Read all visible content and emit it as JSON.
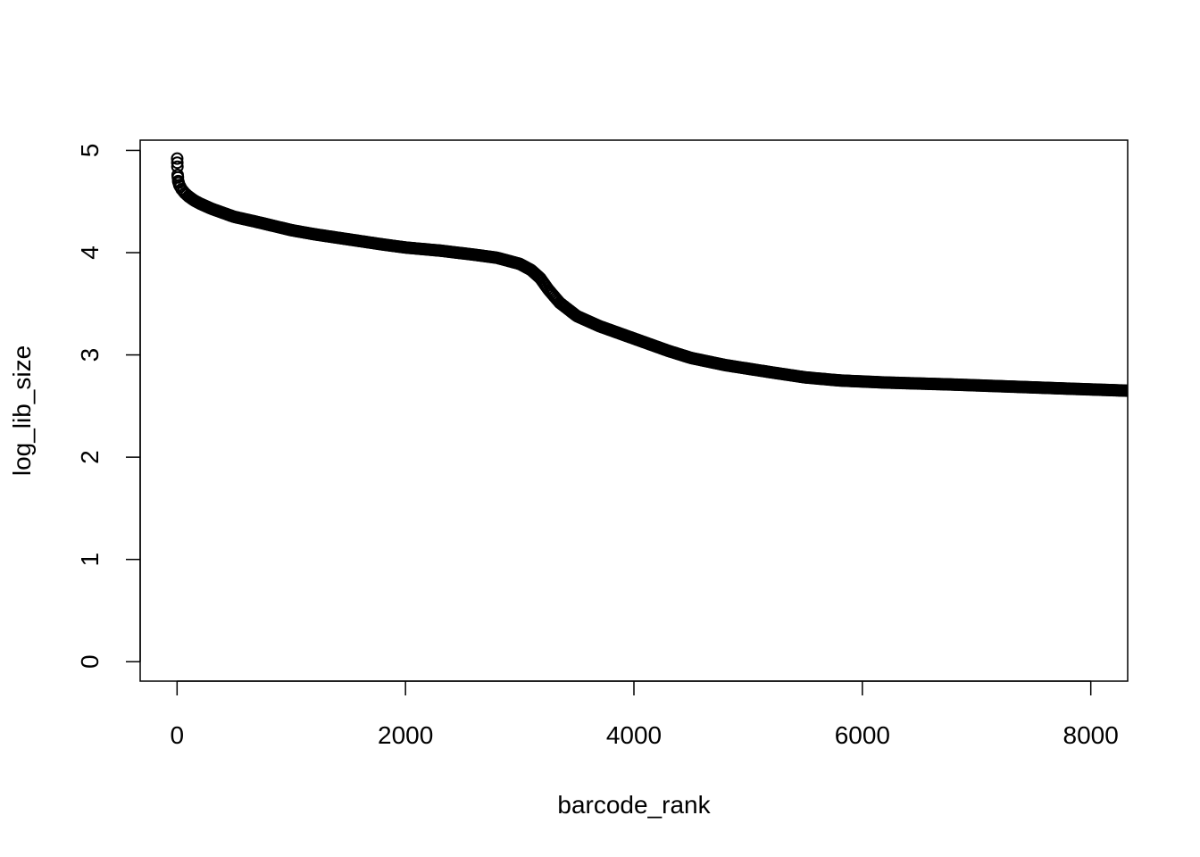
{
  "chart_data": {
    "type": "scatter",
    "title": "",
    "xlabel": "barcode_rank",
    "ylabel": "log_lib_size",
    "xlim": [
      -323,
      8323
    ],
    "ylim": [
      -0.19,
      5.1
    ],
    "xticks": [
      0,
      2000,
      4000,
      6000,
      8000
    ],
    "yticks": [
      0,
      1,
      2,
      3,
      4,
      5
    ],
    "grid": false,
    "marker": "open-circle",
    "color": "#000000",
    "curve_points": [
      [
        1,
        4.92
      ],
      [
        5,
        4.76
      ],
      [
        10,
        4.7
      ],
      [
        20,
        4.66
      ],
      [
        40,
        4.62
      ],
      [
        70,
        4.58
      ],
      [
        100,
        4.55
      ],
      [
        150,
        4.51
      ],
      [
        200,
        4.48
      ],
      [
        300,
        4.43
      ],
      [
        400,
        4.39
      ],
      [
        500,
        4.35
      ],
      [
        700,
        4.3
      ],
      [
        1000,
        4.22
      ],
      [
        1200,
        4.18
      ],
      [
        1500,
        4.13
      ],
      [
        1800,
        4.08
      ],
      [
        2000,
        4.05
      ],
      [
        2300,
        4.02
      ],
      [
        2600,
        3.98
      ],
      [
        2800,
        3.95
      ],
      [
        3000,
        3.89
      ],
      [
        3100,
        3.83
      ],
      [
        3180,
        3.75
      ],
      [
        3250,
        3.64
      ],
      [
        3350,
        3.51
      ],
      [
        3500,
        3.38
      ],
      [
        3700,
        3.28
      ],
      [
        3900,
        3.2
      ],
      [
        4100,
        3.12
      ],
      [
        4300,
        3.04
      ],
      [
        4500,
        2.97
      ],
      [
        4800,
        2.9
      ],
      [
        5200,
        2.83
      ],
      [
        5500,
        2.78
      ],
      [
        5800,
        2.75
      ],
      [
        6200,
        2.73
      ],
      [
        6800,
        2.71
      ],
      [
        7300,
        2.69
      ],
      [
        7800,
        2.67
      ],
      [
        8323,
        2.65
      ]
    ]
  }
}
